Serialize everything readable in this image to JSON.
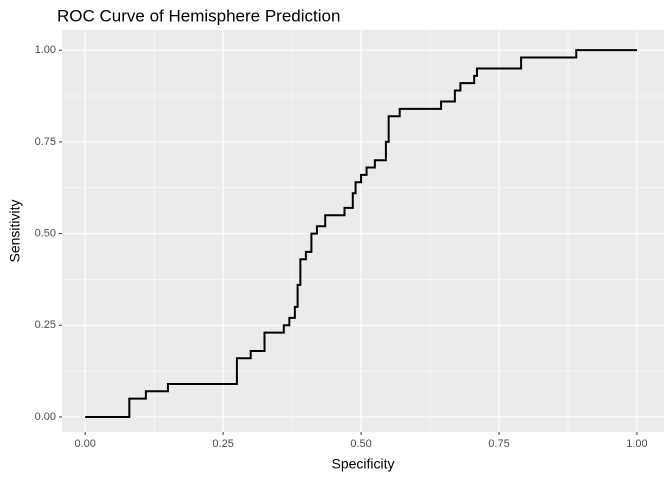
{
  "chart_data": {
    "type": "line",
    "title": "ROC Curve of Hemisphere Prediction",
    "x_label": "Specificity",
    "y_label": "Sensitivity",
    "x": [
      0,
      0.08,
      0.08,
      0.11,
      0.11,
      0.15,
      0.15,
      0.275,
      0.275,
      0.3,
      0.3,
      0.325,
      0.325,
      0.36,
      0.36,
      0.37,
      0.37,
      0.38,
      0.38,
      0.385,
      0.385,
      0.39,
      0.39,
      0.4,
      0.4,
      0.41,
      0.41,
      0.42,
      0.42,
      0.435,
      0.435,
      0.47,
      0.47,
      0.485,
      0.485,
      0.49,
      0.49,
      0.5,
      0.5,
      0.51,
      0.51,
      0.525,
      0.525,
      0.545,
      0.545,
      0.55,
      0.55,
      0.57,
      0.57,
      0.645,
      0.645,
      0.67,
      0.67,
      0.68,
      0.68,
      0.705,
      0.705,
      0.71,
      0.71,
      0.79,
      0.79,
      0.89,
      0.89,
      1
    ],
    "series": [
      {
        "name": "ROC",
        "color": "#000000",
        "values": [
          0,
          0,
          0.05,
          0.05,
          0.07,
          0.07,
          0.09,
          0.09,
          0.16,
          0.16,
          0.18,
          0.18,
          0.23,
          0.23,
          0.25,
          0.25,
          0.27,
          0.27,
          0.3,
          0.3,
          0.36,
          0.36,
          0.43,
          0.43,
          0.45,
          0.45,
          0.5,
          0.5,
          0.52,
          0.52,
          0.55,
          0.55,
          0.57,
          0.57,
          0.61,
          0.61,
          0.64,
          0.64,
          0.66,
          0.66,
          0.68,
          0.68,
          0.7,
          0.7,
          0.75,
          0.75,
          0.82,
          0.82,
          0.84,
          0.84,
          0.86,
          0.86,
          0.89,
          0.89,
          0.91,
          0.91,
          0.93,
          0.93,
          0.95,
          0.95,
          0.98,
          0.98,
          1,
          1
        ]
      }
    ],
    "xlim": [
      -0.042,
      1.049
    ],
    "ylim": [
      -0.041,
      1.055
    ],
    "xticks": [
      {
        "value": 0,
        "label": "0.00"
      },
      {
        "value": 0.25,
        "label": "0.25"
      },
      {
        "value": 0.5,
        "label": "0.50"
      },
      {
        "value": 0.75,
        "label": "0.75"
      },
      {
        "value": 1,
        "label": "1.00"
      }
    ],
    "yticks": [
      {
        "value": 0,
        "label": "0.00"
      },
      {
        "value": 0.25,
        "label": "0.25"
      },
      {
        "value": 0.5,
        "label": "0.50"
      },
      {
        "value": 0.75,
        "label": "0.75"
      },
      {
        "value": 1,
        "label": "1.00"
      }
    ],
    "grid": true
  }
}
